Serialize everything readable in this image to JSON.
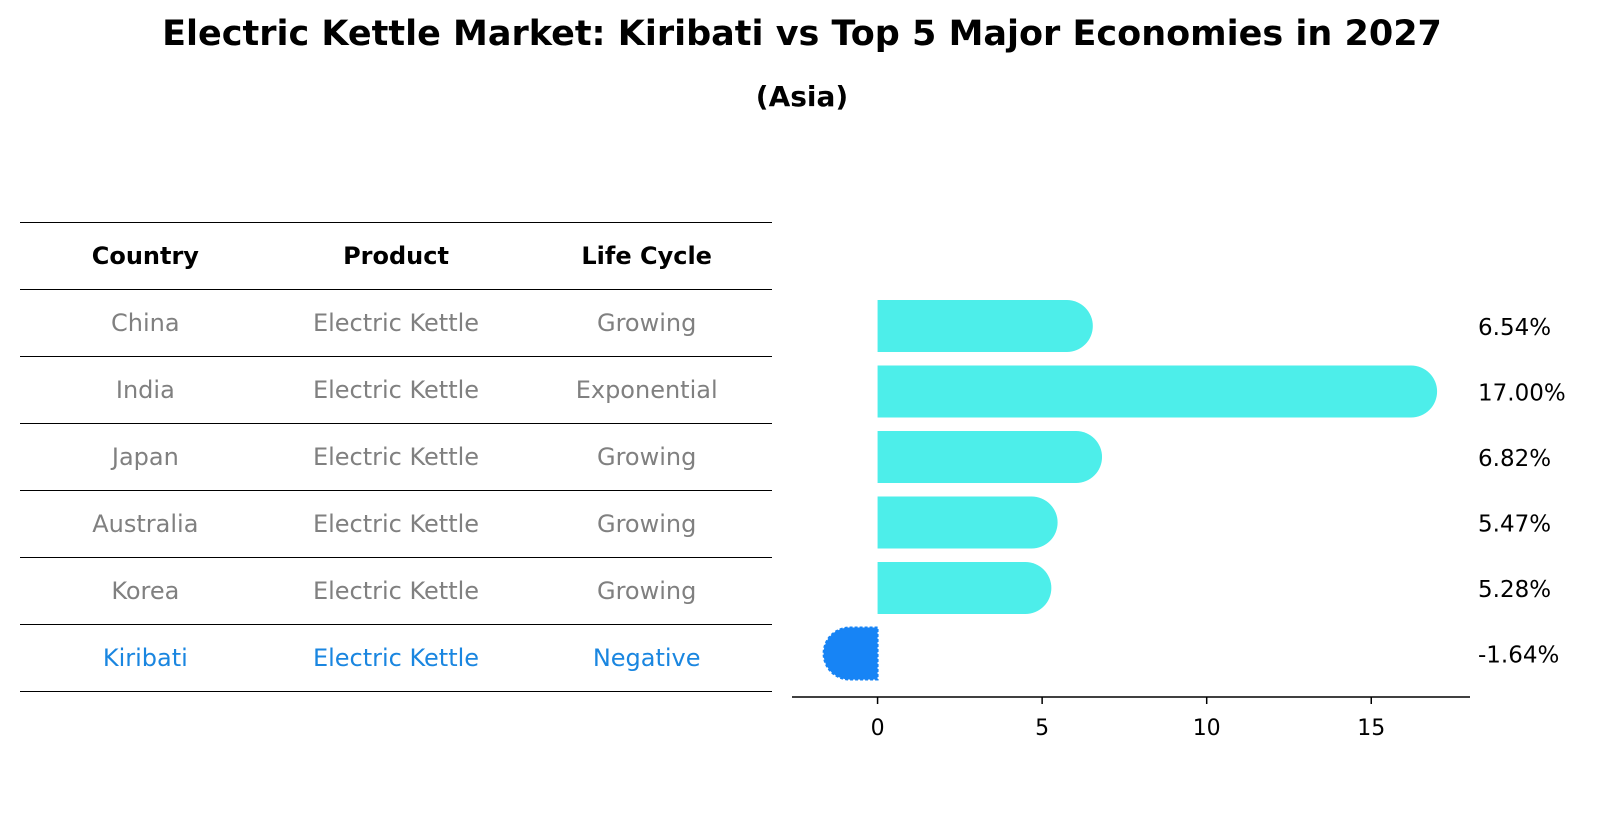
{
  "title": "Electric Kettle Market: Kiribati vs Top 5 Major Economies in 2027",
  "subtitle": "(Asia)",
  "table": {
    "headers": [
      "Country",
      "Product",
      "Life Cycle"
    ],
    "rows": [
      [
        "China",
        "Electric Kettle",
        "Growing"
      ],
      [
        "India",
        "Electric Kettle",
        "Exponential"
      ],
      [
        "Japan",
        "Electric Kettle",
        "Growing"
      ],
      [
        "Australia",
        "Electric Kettle",
        "Growing"
      ],
      [
        "Korea",
        "Electric Kettle",
        "Growing"
      ],
      [
        "Kiribati",
        "Electric Kettle",
        "Negative"
      ]
    ],
    "highlight_row": 5,
    "highlight_color": "#1a86e0"
  },
  "chart_data": {
    "type": "bar",
    "orientation": "horizontal",
    "categories": [
      "China",
      "India",
      "Japan",
      "Australia",
      "Korea",
      "Kiribati"
    ],
    "values": [
      6.54,
      17.0,
      6.82,
      5.47,
      5.28,
      -1.64
    ],
    "value_labels": [
      "6.54%",
      "17.00%",
      "6.82%",
      "5.47%",
      "5.28%",
      "-1.64%"
    ],
    "xlim": [
      -2.6,
      18
    ],
    "xticks": [
      0,
      5,
      10,
      15
    ],
    "colors": {
      "positive": "#4deeea",
      "negative": "#1784f5"
    },
    "grid": false
  }
}
